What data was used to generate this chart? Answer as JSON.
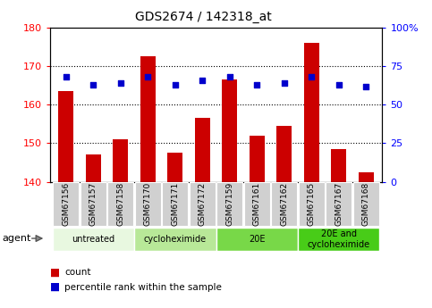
{
  "title": "GDS2674 / 142318_at",
  "samples": [
    "GSM67156",
    "GSM67157",
    "GSM67158",
    "GSM67170",
    "GSM67171",
    "GSM67172",
    "GSM67159",
    "GSM67161",
    "GSM67162",
    "GSM67165",
    "GSM67167",
    "GSM67168"
  ],
  "bar_values": [
    163.5,
    147.0,
    151.0,
    172.5,
    147.5,
    156.5,
    166.5,
    152.0,
    154.5,
    176.0,
    148.5,
    142.5
  ],
  "dot_values": [
    68,
    63,
    64,
    68,
    63,
    66,
    68,
    63,
    64,
    68,
    63,
    62
  ],
  "bar_color": "#cc0000",
  "dot_color": "#0000cc",
  "ylim_left": [
    140,
    180
  ],
  "ylim_right": [
    0,
    100
  ],
  "yticks_left": [
    140,
    150,
    160,
    170,
    180
  ],
  "yticks_right": [
    0,
    25,
    50,
    75,
    100
  ],
  "groups": [
    {
      "label": "untreated",
      "start": 0,
      "end": 3
    },
    {
      "label": "cycloheximide",
      "start": 3,
      "end": 6
    },
    {
      "label": "20E",
      "start": 6,
      "end": 9
    },
    {
      "label": "20E and\ncycloheximide",
      "start": 9,
      "end": 12
    }
  ],
  "group_colors": [
    "#e8f8e0",
    "#b8e898",
    "#78d848",
    "#48cc18"
  ],
  "legend_count_color": "#cc0000",
  "legend_dot_color": "#0000cc",
  "tick_bg_color": "#d0d0d0",
  "gridline_ticks": [
    150,
    160,
    170
  ]
}
